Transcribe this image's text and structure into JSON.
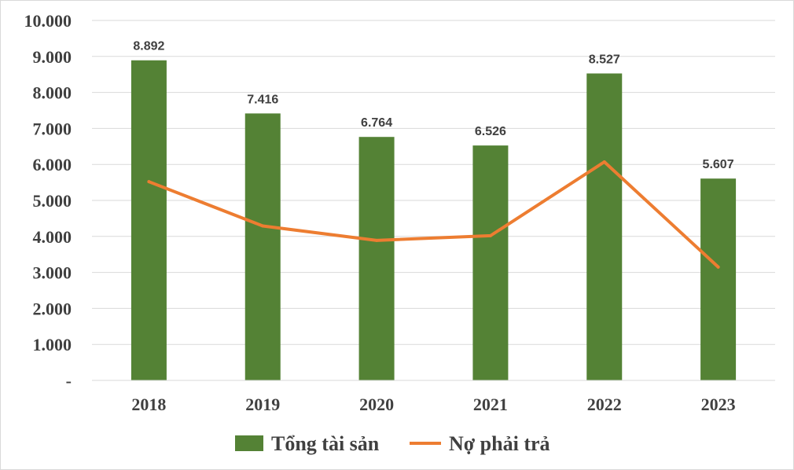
{
  "chart_data": {
    "type": "bar",
    "categories": [
      "2018",
      "2019",
      "2020",
      "2021",
      "2022",
      "2023"
    ],
    "y_tick_labels": [
      "-",
      "1.000",
      "2.000",
      "3.000",
      "4.000",
      "5.000",
      "6.000",
      "7.000",
      "8.000",
      "9.000",
      "10.000"
    ],
    "ylim": [
      0,
      10000
    ],
    "grid": true,
    "legend_position": "bottom",
    "series": [
      {
        "name": "Tổng tài sản",
        "type": "bar",
        "color": "#548235",
        "values": [
          8892,
          7416,
          6764,
          6526,
          8527,
          5607
        ],
        "data_labels": [
          "8.892",
          "7.416",
          "6.764",
          "6.526",
          "8.527",
          "5.607"
        ]
      },
      {
        "name": "Nợ phải trả",
        "type": "line",
        "color": "#ED7D31",
        "values": [
          5520,
          4290,
          3890,
          4020,
          6070,
          3150
        ]
      }
    ]
  }
}
